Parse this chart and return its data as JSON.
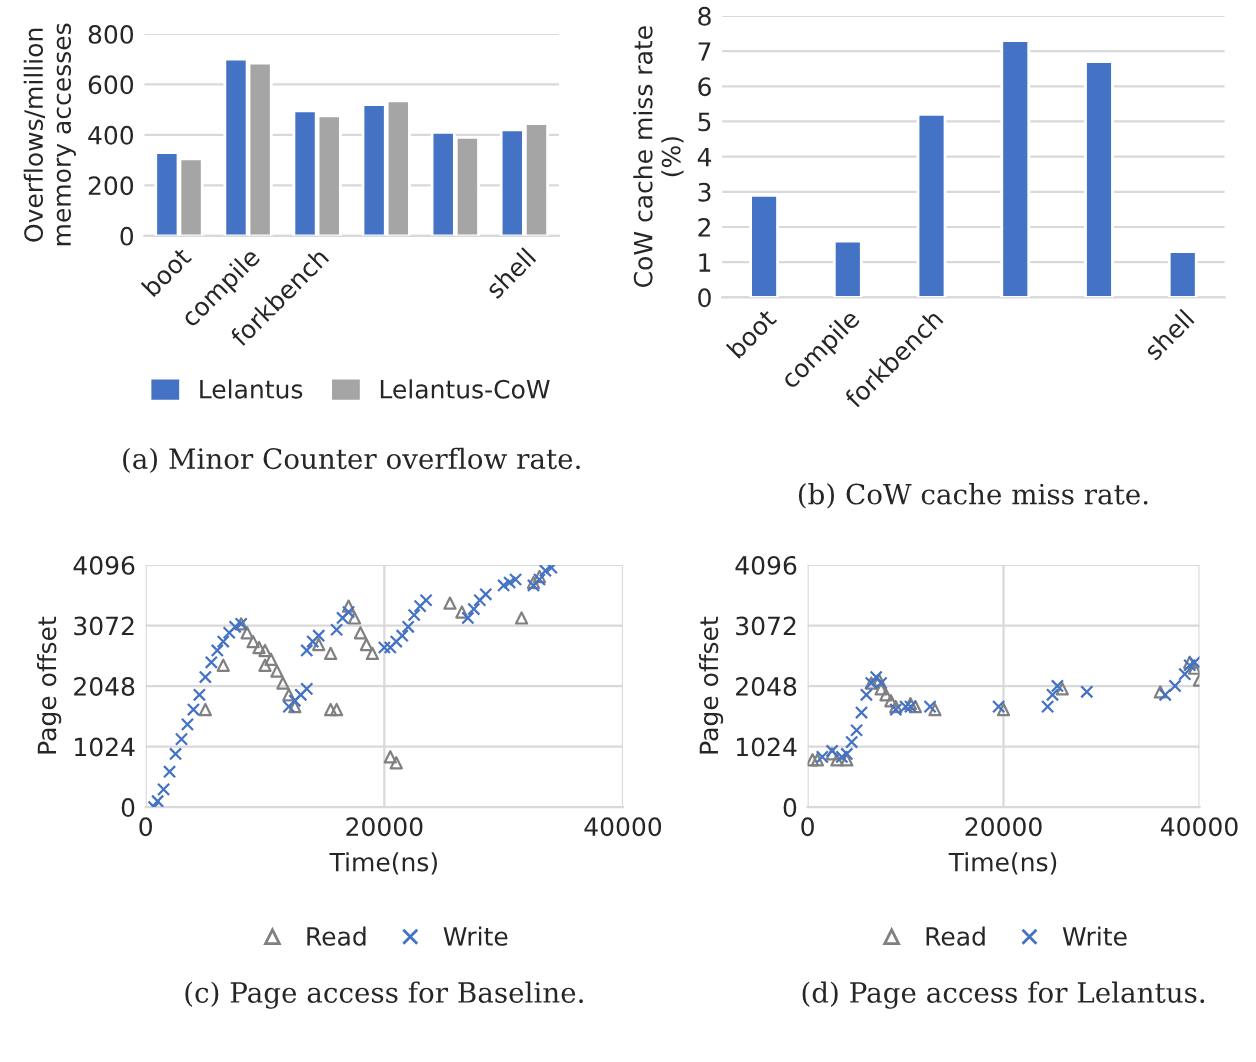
{
  "chart_data": [
    {
      "type": "bar",
      "categories": [
        "boot",
        "compile",
        "forkbench",
        null,
        null,
        "shell"
      ],
      "ylabel": "Overflows/million memory accesses",
      "ylim": [
        0,
        800
      ],
      "yticks": [
        0,
        200,
        400,
        600,
        800
      ],
      "grid": "y",
      "legend": "bottom",
      "series": [
        {
          "name": "Lelantus",
          "color": "#4472c4",
          "values": [
            330,
            700,
            495,
            520,
            410,
            420
          ]
        },
        {
          "name": "Lelantus-CoW",
          "color": "#a5a5a5",
          "values": [
            305,
            685,
            475,
            535,
            390,
            445
          ]
        }
      ],
      "annotations": [
        "(a) Minor Counter overflow rate."
      ]
    },
    {
      "type": "bar",
      "categories": [
        "boot",
        "compile",
        "forkbench",
        null,
        null,
        "shell"
      ],
      "ylabel": "CoW cache miss rate (%)",
      "ylim": [
        0,
        8
      ],
      "yticks": [
        0,
        1,
        2,
        3,
        4,
        5,
        6,
        7,
        8
      ],
      "grid": "y",
      "series": [
        {
          "color": "#4472c4",
          "values": [
            2.9,
            1.6,
            5.2,
            7.3,
            6.7,
            1.3
          ]
        }
      ],
      "annotations": [
        "(b) CoW cache miss rate."
      ]
    },
    {
      "type": "scatter",
      "xlabel": "Time(ns)",
      "ylabel": "Page offset",
      "xlim": [
        0,
        40000
      ],
      "xticks": [
        0,
        20000,
        40000
      ],
      "ylim": [
        0,
        4096
      ],
      "yticks": [
        0,
        1024,
        2048,
        3072,
        4096
      ],
      "grid": true,
      "legend": "bottom",
      "series": [
        {
          "name": "Read",
          "color": "#808080",
          "marker": "triangle",
          "x": [
            5000,
            6500,
            8000,
            8500,
            9000,
            9500,
            10000,
            10000,
            10500,
            11000,
            11500,
            12000,
            12500,
            14500,
            15500,
            15500,
            16000,
            17000,
            17500,
            18000,
            18500,
            19000,
            20500,
            21000,
            25500,
            26500,
            31500,
            32500,
            33000
          ],
          "values": [
            1650,
            2400,
            3100,
            2950,
            2800,
            2700,
            2650,
            2400,
            2500,
            2300,
            2100,
            1900,
            1700,
            2750,
            2600,
            1650,
            1650,
            3400,
            3200,
            2950,
            2750,
            2600,
            850,
            750,
            3450,
            3300,
            3200,
            3800,
            3900
          ]
        },
        {
          "name": "Write",
          "color": "#4472c4",
          "marker": "cross",
          "x": [
            700,
            1000,
            1500,
            2000,
            2500,
            3000,
            3500,
            4000,
            4500,
            5000,
            5500,
            6000,
            6500,
            7000,
            7500,
            8000,
            12000,
            12500,
            13000,
            13500,
            13500,
            14000,
            14500,
            16000,
            16500,
            17000,
            20000,
            20500,
            21000,
            21500,
            22000,
            22500,
            23000,
            23500,
            27000,
            27500,
            28000,
            28500,
            30000,
            30500,
            31000,
            32500,
            33000,
            33500,
            34000
          ],
          "values": [
            0,
            100,
            300,
            600,
            900,
            1150,
            1400,
            1650,
            1900,
            2200,
            2450,
            2650,
            2800,
            2950,
            3050,
            3100,
            1700,
            1800,
            1900,
            2000,
            2650,
            2800,
            2900,
            3000,
            3200,
            3300,
            2700,
            2700,
            2800,
            2900,
            3050,
            3250,
            3400,
            3500,
            3200,
            3350,
            3500,
            3600,
            3750,
            3800,
            3850,
            3750,
            3850,
            4000,
            4050
          ]
        }
      ],
      "annotations": [
        "(c) Page access for Baseline."
      ]
    },
    {
      "type": "scatter",
      "xlabel": "Time(ns)",
      "ylabel": "Page offset",
      "xlim": [
        0,
        40000
      ],
      "xticks": [
        0,
        20000,
        40000
      ],
      "ylim": [
        0,
        4096
      ],
      "yticks": [
        0,
        1024,
        2048,
        3072,
        4096
      ],
      "grid": true,
      "legend": "bottom",
      "series": [
        {
          "name": "Read",
          "color": "#808080",
          "marker": "triangle",
          "x": [
            500,
            1000,
            2500,
            3000,
            4000,
            6500,
            7300,
            7500,
            8000,
            8500,
            9000,
            10500,
            11000,
            13000,
            20000,
            26000,
            36000,
            39000,
            39500,
            40000
          ],
          "values": [
            800,
            800,
            900,
            800,
            800,
            2100,
            2150,
            2000,
            1900,
            1800,
            1700,
            1750,
            1700,
            1650,
            1650,
            2000,
            1950,
            2450,
            2350,
            2150
          ]
        },
        {
          "name": "Write",
          "color": "#4472c4",
          "marker": "cross",
          "x": [
            1500,
            2500,
            3500,
            4000,
            4500,
            5000,
            5500,
            6000,
            6500,
            7000,
            7500,
            9000,
            10000,
            10500,
            12500,
            19500,
            24500,
            25000,
            25500,
            28500,
            36500,
            37500,
            38500,
            39000,
            39500
          ],
          "values": [
            850,
            950,
            850,
            900,
            1100,
            1300,
            1600,
            1900,
            2100,
            2200,
            2100,
            1650,
            1700,
            1700,
            1700,
            1700,
            1700,
            1900,
            2050,
            1950,
            1900,
            2050,
            2250,
            2400,
            2450
          ]
        }
      ],
      "annotations": [
        "(d) Page access for Lelantus."
      ]
    }
  ]
}
